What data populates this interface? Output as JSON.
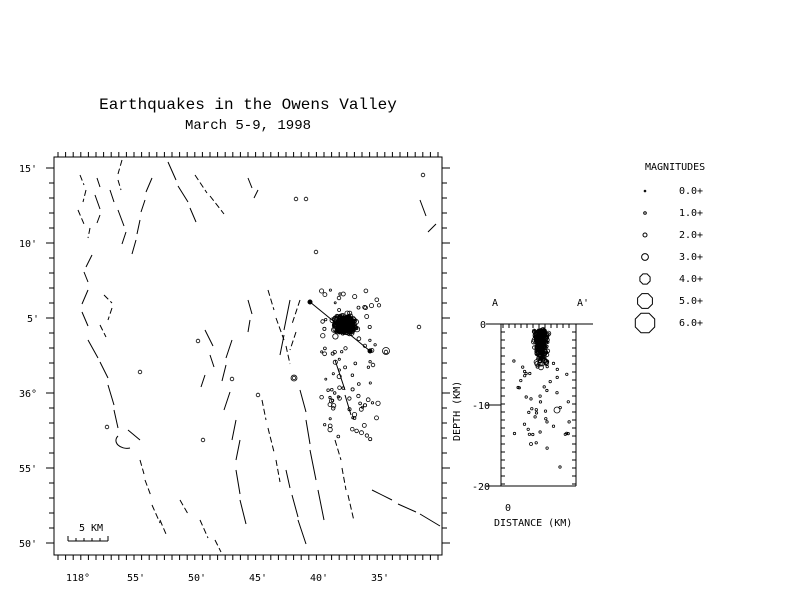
{
  "title": "Earthquakes in the Owens Valley",
  "subtitle": "March 5-9, 1998",
  "map": {
    "lat_labels": [
      "15'",
      "10'",
      "5'",
      "36°",
      "55'",
      "50'"
    ],
    "lon_labels": [
      "118°",
      "55'",
      "50'",
      "45'",
      "40'",
      "35'"
    ],
    "scale_bar_label": "5 KM"
  },
  "cross_section": {
    "label_a": "A",
    "label_a_prime": "A'",
    "depth_axis_label": "DEPTH (KM)",
    "depth_ticks": [
      "0",
      "-10",
      "-20"
    ],
    "distance_axis_label": "DISTANCE (KM)",
    "distance_tick": "0"
  },
  "legend": {
    "title": "MAGNITUDES",
    "items": [
      {
        "label": "0.0+",
        "magnitude": 0
      },
      {
        "label": "1.0+",
        "magnitude": 1
      },
      {
        "label": "2.0+",
        "magnitude": 2
      },
      {
        "label": "3.0+",
        "magnitude": 3
      },
      {
        "label": "4.0+",
        "magnitude": 4
      },
      {
        "label": "5.0+",
        "magnitude": 5
      },
      {
        "label": "6.0+",
        "magnitude": 6
      }
    ]
  }
}
